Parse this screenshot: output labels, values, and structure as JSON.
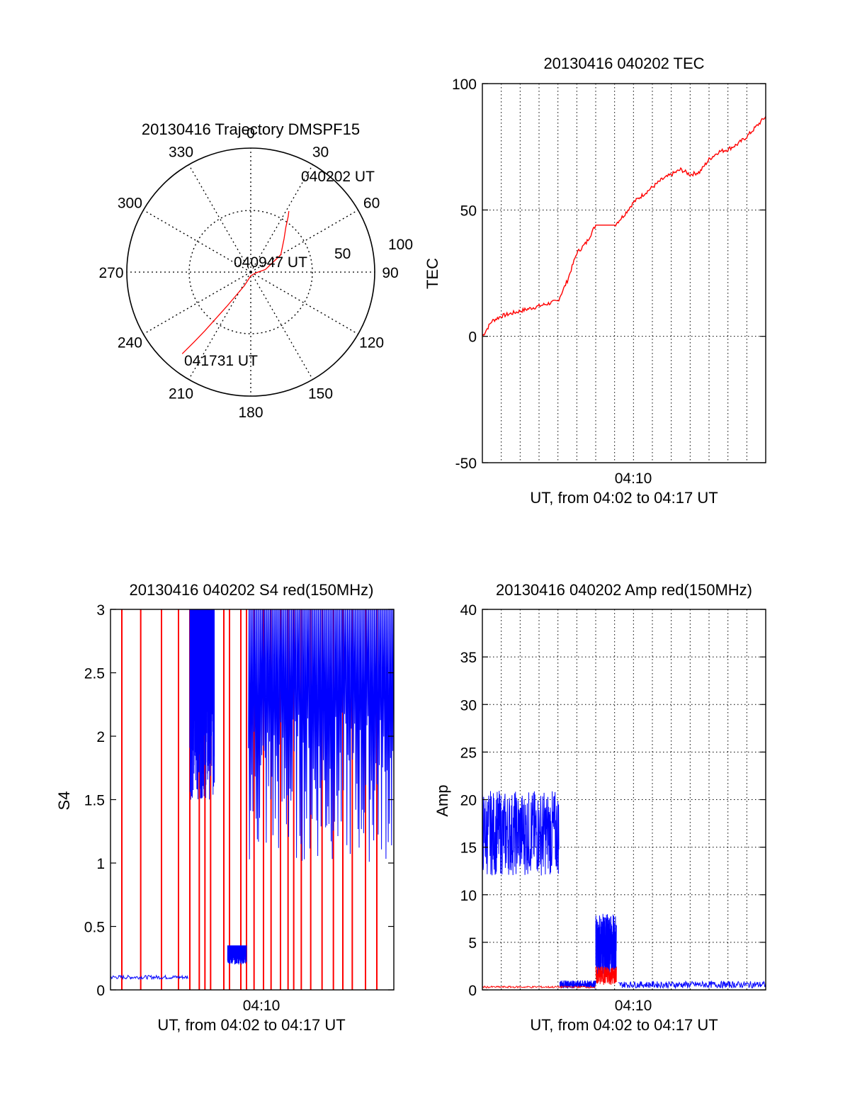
{
  "colors": {
    "red": "#ff0000",
    "blue": "#0000ff",
    "axis": "#000000",
    "grid": "#000000"
  },
  "chart_data": [
    {
      "id": "trajectory",
      "type": "polar",
      "title": "20130416 Trajectory DMSPF15",
      "angle_labels": [
        "0",
        "30",
        "60",
        "90",
        "120",
        "150",
        "180",
        "210",
        "240",
        "270",
        "300",
        "330"
      ],
      "radial_labels": [
        "50",
        "100"
      ],
      "rmax": 100,
      "track": {
        "series_color": "red",
        "points": [
          [
            32,
            58
          ],
          [
            34,
            54
          ],
          [
            38,
            46
          ],
          [
            45,
            38
          ],
          [
            60,
            28
          ],
          [
            80,
            12
          ],
          [
            100,
            4
          ],
          [
            180,
            3
          ],
          [
            205,
            12
          ],
          [
            215,
            34
          ],
          [
            218,
            60
          ],
          [
            219,
            72
          ],
          [
            220,
            86
          ]
        ]
      },
      "annotations": [
        {
          "text": "040202 UT",
          "at": [
            32,
            58
          ]
        },
        {
          "text": "040947 UT",
          "at": [
            100,
            4
          ]
        },
        {
          "text": "041731 UT",
          "at": [
            220,
            86
          ]
        }
      ]
    },
    {
      "id": "tec",
      "type": "line",
      "title": "20130416 040202 TEC",
      "ylabel": "TEC",
      "xlabel": "UT, from 04:02 to 04:17 UT",
      "xlim": [
        0,
        15
      ],
      "ylim": [
        -50,
        100
      ],
      "yticks": [
        -50,
        0,
        50,
        100
      ],
      "xticks": [
        {
          "at": 8,
          "label": "04:10"
        }
      ],
      "grid": true,
      "series": [
        {
          "color": "red",
          "x": [
            0,
            0.5,
            1,
            1.5,
            2,
            2.5,
            3,
            3.5,
            4,
            4.5,
            5,
            5.5,
            6,
            6.5,
            7,
            7.5,
            8,
            8.5,
            9,
            9.5,
            10,
            10.5,
            11,
            11.5,
            12,
            12.5,
            13,
            13.5,
            14,
            14.5,
            15
          ],
          "y": [
            0,
            6,
            8,
            9,
            10,
            11,
            12,
            13,
            14,
            22,
            33,
            37,
            44,
            44,
            44,
            48,
            53,
            56,
            59,
            62,
            64,
            66,
            64,
            65,
            70,
            73,
            74,
            76,
            79,
            83,
            87
          ]
        }
      ]
    },
    {
      "id": "s4",
      "type": "line",
      "title": "20130416 040202 S4 red(150MHz)",
      "ylabel": "S4",
      "xlabel": "UT, from 04:02 to 04:17 UT",
      "xlim": [
        0,
        15
      ],
      "ylim": [
        0,
        3
      ],
      "yticks": [
        0,
        0.5,
        1,
        1.5,
        2,
        2.5,
        3
      ],
      "ytick_labels": [
        "0",
        "0.5",
        "1",
        "1.5",
        "2",
        "2.5",
        "3"
      ],
      "xticks": [
        {
          "at": 8,
          "label": "04:10"
        }
      ],
      "grid": false,
      "red_spikes_x": [
        0.6,
        1.6,
        2.7,
        3.6,
        4.2,
        4.7,
        5.0,
        5.3,
        6.0,
        6.3,
        6.9,
        7.2,
        7.6,
        8.1,
        8.5,
        9.0,
        9.4,
        9.7,
        10.1,
        10.6,
        11.2,
        11.8,
        12.3,
        12.8,
        13.5,
        14.1
      ],
      "blue_quiet_level": 0.1,
      "blue_segments": [
        {
          "x": [
            0,
            4.1
          ],
          "level": 0.1
        },
        {
          "x": [
            4.2,
            5.5
          ],
          "range": [
            1.5,
            3
          ]
        },
        {
          "x": [
            6.2,
            7.2
          ],
          "range": [
            0.2,
            0.35
          ]
        },
        {
          "x": [
            7.3,
            15
          ],
          "range": [
            1.0,
            3
          ]
        }
      ]
    },
    {
      "id": "amp",
      "type": "line",
      "title": "20130416 040202 Amp red(150MHz)",
      "ylabel": "Amp",
      "xlabel": "UT, from 04:02 to 04:17 UT",
      "xlim": [
        0,
        15
      ],
      "ylim": [
        0,
        40
      ],
      "yticks": [
        0,
        5,
        10,
        15,
        20,
        25,
        30,
        35,
        40
      ],
      "xticks": [
        {
          "at": 8,
          "label": "04:10"
        }
      ],
      "grid": true,
      "blue_segments": [
        {
          "x": [
            0,
            4.05
          ],
          "range": [
            12,
            21
          ]
        },
        {
          "x": [
            4.1,
            6.0
          ],
          "range": [
            0.2,
            1.0
          ]
        },
        {
          "x": [
            6.0,
            7.1
          ],
          "range": [
            1.5,
            8
          ]
        },
        {
          "x": [
            7.2,
            15
          ],
          "range": [
            0.2,
            0.9
          ]
        }
      ],
      "red_segments": [
        {
          "x": [
            0,
            6.0
          ],
          "range": [
            0.2,
            0.4
          ]
        },
        {
          "x": [
            6.0,
            7.1
          ],
          "range": [
            0.5,
            2.5
          ]
        }
      ]
    }
  ]
}
